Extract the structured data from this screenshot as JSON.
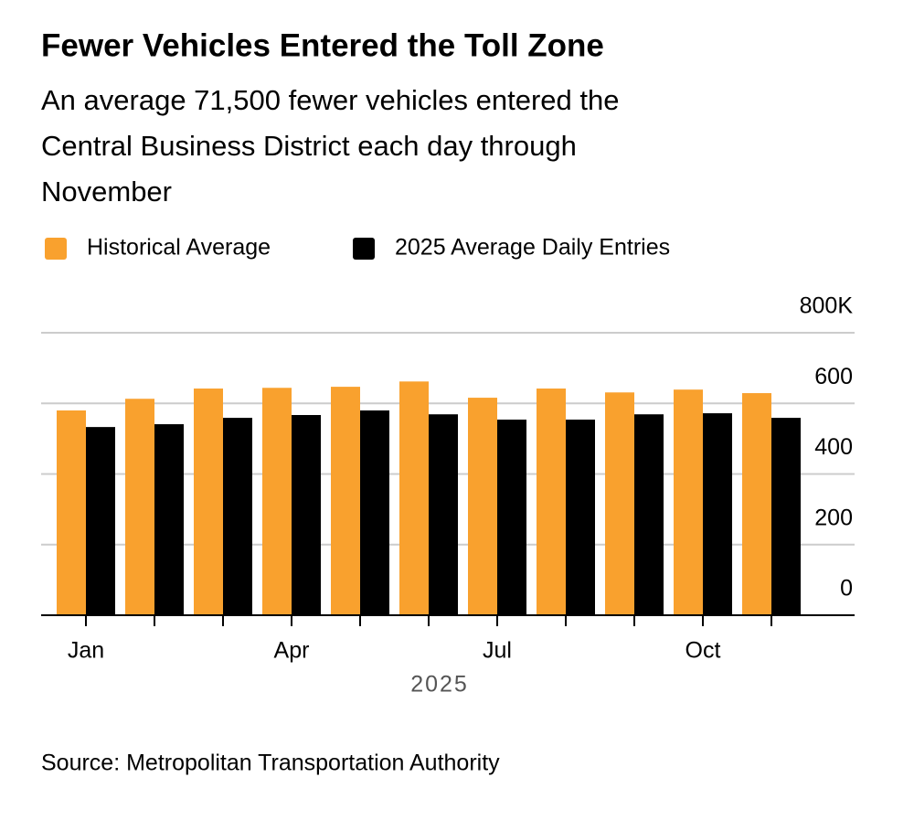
{
  "chart_data": {
    "type": "bar",
    "title": "Fewer Vehicles Entered the Toll Zone",
    "subtitle": [
      "An average 71,500 fewer vehicles entered the",
      "Central Business District each day through",
      "November"
    ],
    "categories": [
      "Jan",
      null,
      null,
      "Apr",
      null,
      null,
      "Jul",
      null,
      null,
      "Oct",
      null
    ],
    "series": [
      {
        "name": "Historical Average",
        "color": "#f9a12e",
        "values": [
          580,
          613,
          642,
          644,
          647,
          662,
          616,
          642,
          631,
          639,
          629
        ]
      },
      {
        "name": "2025 Average Daily Entries",
        "color": "#000000",
        "values": [
          533,
          541,
          559,
          567,
          580,
          569,
          554,
          554,
          569,
          572,
          559
        ]
      }
    ],
    "xlabel": "2025",
    "ylim": [
      0,
      800
    ],
    "yticks": [
      0,
      200,
      400,
      600,
      {
        "value": 800,
        "label": "800K"
      }
    ],
    "grid": true,
    "source": "Source: Metropolitan Transportation Authority"
  }
}
